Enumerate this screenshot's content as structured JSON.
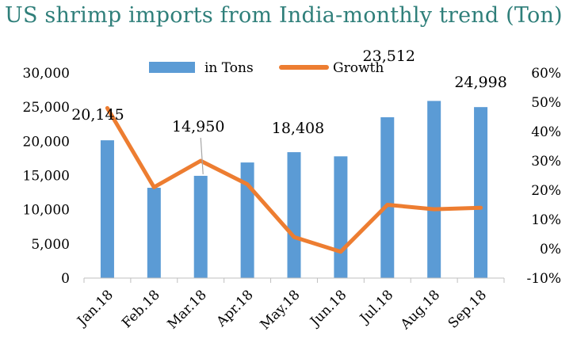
{
  "chart_data": {
    "type": "bar",
    "title": "US shrimp imports from India-monthly trend (Ton)",
    "categories": [
      "Jan.18",
      "Feb.18",
      "Mar.18",
      "Apr.18",
      "May.18",
      "Jun.18",
      "Jul.18",
      "Aug.18",
      "Sep.18"
    ],
    "series": [
      {
        "name": "in Tons",
        "type": "bar",
        "axis": "left",
        "color": "#5b9bd5",
        "values": [
          20145,
          13200,
          14950,
          16900,
          18408,
          17800,
          23512,
          25900,
          24998
        ]
      },
      {
        "name": "Growth",
        "type": "line",
        "axis": "right",
        "color": "#ed7d31",
        "values": [
          48,
          21,
          30,
          22,
          4,
          -1,
          15,
          13.5,
          14
        ]
      }
    ],
    "data_labels": [
      {
        "index": 0,
        "text": "20,145"
      },
      {
        "index": 2,
        "text": "14,950"
      },
      {
        "index": 4,
        "text": "18,408"
      },
      {
        "index": 6,
        "text": "23,512"
      },
      {
        "index": 8,
        "text": "24,998"
      }
    ],
    "y_left": {
      "min": 0,
      "max": 30000,
      "step": 5000,
      "tick_labels": [
        "0",
        "5,000",
        "10,000",
        "15,000",
        "20,000",
        "25,000",
        "30,000"
      ]
    },
    "y_right": {
      "min": -10,
      "max": 60,
      "step": 10,
      "tick_labels": [
        "-10%",
        "0%",
        "10%",
        "20%",
        "30%",
        "40%",
        "50%",
        "60%"
      ]
    },
    "legend_position": "top",
    "grid": false
  }
}
